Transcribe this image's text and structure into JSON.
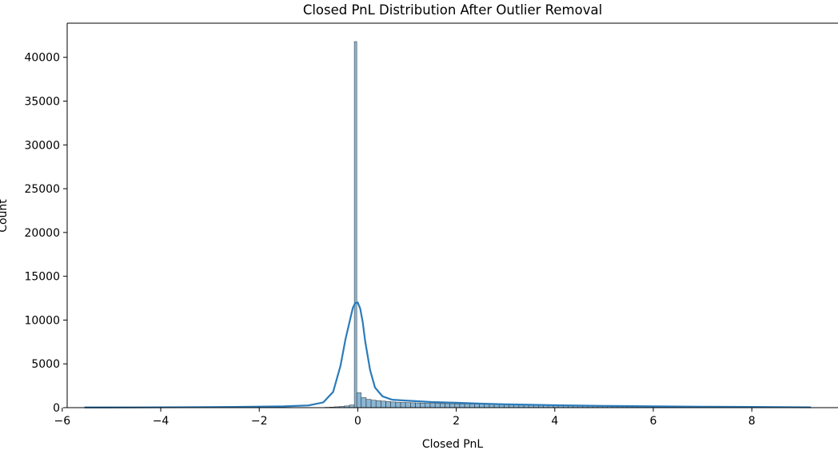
{
  "chart_data": {
    "type": "bar",
    "title": "Closed PnL Distribution After Outlier Removal",
    "xlabel": "Closed PnL",
    "ylabel": "Count",
    "xlim": [
      -5.9,
      9.75
    ],
    "ylim": [
      0,
      43900
    ],
    "xticks": [
      -6,
      -4,
      -2,
      0,
      2,
      4,
      6,
      8
    ],
    "xtick_labels": [
      "−6",
      "−4",
      "−2",
      "0",
      "2",
      "4",
      "6",
      "8"
    ],
    "yticks": [
      0,
      5000,
      10000,
      15000,
      20000,
      25000,
      30000,
      35000,
      40000
    ],
    "ytick_labels": [
      "0",
      "5000",
      "10000",
      "15000",
      "20000",
      "25000",
      "30000",
      "35000",
      "40000"
    ],
    "grid": false,
    "bar_color": "#4c8fbd",
    "bar_fill_opacity": 0.65,
    "kde_color": "#2b7bba",
    "histogram": {
      "bin_edges": [
        -0.67,
        -0.57,
        -0.47,
        -0.37,
        -0.27,
        -0.17,
        -0.07,
        -0.02,
        0.07,
        0.17,
        0.27,
        0.37,
        0.47,
        0.57,
        0.67,
        0.77,
        0.87,
        0.97,
        1.07,
        1.17,
        1.27,
        1.37,
        1.47,
        1.57,
        1.67,
        1.77,
        1.87,
        1.97,
        2.07,
        2.17,
        2.27,
        2.37,
        2.47,
        2.57,
        2.67,
        2.77,
        2.87,
        2.97,
        3.07,
        3.17,
        3.27,
        3.37,
        3.47,
        3.57,
        3.67,
        3.77,
        3.87,
        3.97,
        4.07,
        4.17,
        4.27,
        4.37,
        4.47,
        4.57,
        4.67,
        4.77,
        4.87,
        4.97,
        5.07,
        5.17,
        5.27,
        5.37,
        5.47,
        5.57,
        5.67,
        5.77,
        5.87,
        5.97,
        6.07,
        6.17,
        6.27,
        6.37,
        6.47,
        6.57,
        6.67,
        6.77,
        6.87,
        6.97,
        7.07,
        7.17,
        7.27,
        7.37,
        7.47,
        7.57,
        7.67,
        7.77,
        7.87,
        7.97,
        8.07,
        8.17,
        8.27,
        8.37,
        8.47,
        8.57,
        8.67,
        8.77,
        8.87,
        8.97,
        9.07,
        9.17
      ],
      "counts": [
        40,
        60,
        100,
        140,
        200,
        300,
        41800,
        1700,
        1150,
        950,
        850,
        800,
        750,
        700,
        650,
        620,
        600,
        580,
        560,
        540,
        520,
        500,
        490,
        480,
        470,
        460,
        450,
        440,
        430,
        420,
        410,
        400,
        390,
        380,
        370,
        360,
        350,
        340,
        330,
        320,
        310,
        300,
        295,
        290,
        285,
        280,
        275,
        270,
        265,
        260,
        255,
        250,
        245,
        240,
        235,
        230,
        225,
        220,
        215,
        210,
        205,
        200,
        195,
        190,
        185,
        180,
        175,
        170,
        165,
        160,
        155,
        150,
        145,
        140,
        135,
        130,
        125,
        120,
        115,
        110,
        108,
        106,
        104,
        102,
        100,
        98,
        96,
        94,
        92,
        90,
        88,
        86,
        84,
        82,
        80,
        78,
        76,
        74,
        72
      ]
    },
    "kde": {
      "x": [
        -5.55,
        -4.5,
        -3.5,
        -2.5,
        -1.5,
        -1.0,
        -0.7,
        -0.5,
        -0.35,
        -0.25,
        -0.15,
        -0.1,
        -0.05,
        0.0,
        0.05,
        0.1,
        0.15,
        0.25,
        0.35,
        0.5,
        0.7,
        1.0,
        1.5,
        2.0,
        2.5,
        3.0,
        4.0,
        5.0,
        6.0,
        7.0,
        8.0,
        9.2
      ],
      "y": [
        20,
        30,
        50,
        80,
        150,
        250,
        600,
        1800,
        4800,
        7800,
        10200,
        11400,
        11950,
        12000,
        11300,
        9800,
        7600,
        4300,
        2300,
        1300,
        900,
        800,
        640,
        560,
        460,
        380,
        280,
        200,
        150,
        110,
        80,
        40
      ]
    }
  }
}
